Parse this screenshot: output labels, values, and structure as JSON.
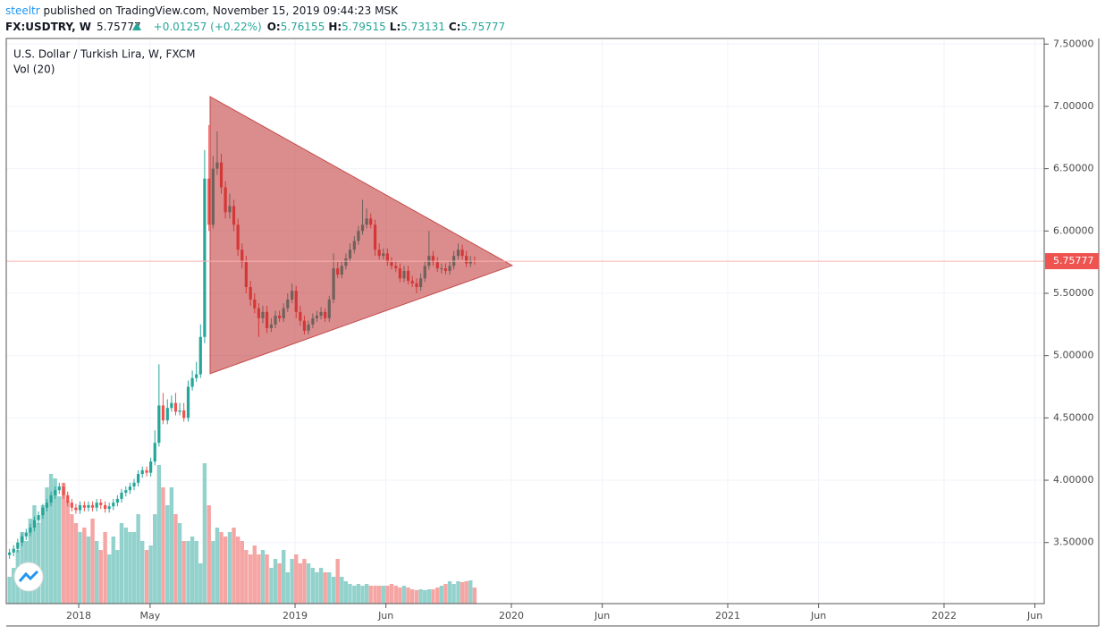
{
  "header": {
    "author": "steeltr",
    "published": " published on TradingView.com, November 15, 2019 09:44:23 MSK",
    "symbol": "FX:USDTRY, W",
    "change": "+0.01257 (+0.22%)",
    "ohlc_labels": [
      "O:",
      "H:",
      "L:",
      "C:"
    ]
  },
  "chart_data": {
    "type": "candlestick",
    "title": "U.S. Dollar / Turkish Lira, W, FXCM",
    "up_color": "#26a69a",
    "down_color": "#ef5350",
    "grid": true,
    "last_price": 5.75777,
    "xlim": [
      2017.665,
      2022.463
    ],
    "ylim": [
      3.01,
      7.545
    ],
    "xticks": [
      {
        "value": 2018,
        "label": "2018"
      },
      {
        "value": 2018.33,
        "label": "May"
      },
      {
        "value": 2019,
        "label": "2019"
      },
      {
        "value": 2019.42,
        "label": "Jun"
      },
      {
        "value": 2020,
        "label": "2020"
      },
      {
        "value": 2020.42,
        "label": "Jun"
      },
      {
        "value": 2021,
        "label": "2021"
      },
      {
        "value": 2021.42,
        "label": "Jun"
      },
      {
        "value": 2022,
        "label": "2022"
      },
      {
        "value": 2022.42,
        "label": "Jun"
      }
    ],
    "yticks": [
      {
        "value": 3.5,
        "label": "3.50000"
      },
      {
        "value": 4,
        "label": "4.00000"
      },
      {
        "value": 4.5,
        "label": "4.50000"
      },
      {
        "value": 5,
        "label": "5.00000"
      },
      {
        "value": 5.5,
        "label": "5.50000"
      },
      {
        "value": 6,
        "label": "6.00000"
      },
      {
        "value": 6.5,
        "label": "6.50000"
      },
      {
        "value": 7,
        "label": "7.00000"
      },
      {
        "value": 7.5,
        "label": "7.50000"
      }
    ],
    "x": [
      2017.68,
      2017.699,
      2017.718,
      2017.738,
      2017.757,
      2017.776,
      2017.795,
      2017.814,
      2017.834,
      2017.853,
      2017.872,
      2017.891,
      2017.91,
      2017.93,
      2017.949,
      2017.968,
      2017.987,
      2018.006,
      2018.026,
      2018.045,
      2018.064,
      2018.083,
      2018.102,
      2018.122,
      2018.141,
      2018.16,
      2018.179,
      2018.198,
      2018.218,
      2018.237,
      2018.256,
      2018.275,
      2018.294,
      2018.314,
      2018.333,
      2018.352,
      2018.371,
      2018.39,
      2018.41,
      2018.429,
      2018.448,
      2018.467,
      2018.486,
      2018.506,
      2018.525,
      2018.544,
      2018.563,
      2018.582,
      2018.602,
      2018.621,
      2018.64,
      2018.659,
      2018.678,
      2018.698,
      2018.717,
      2018.736,
      2018.755,
      2018.774,
      2018.794,
      2018.813,
      2018.832,
      2018.851,
      2018.87,
      2018.89,
      2018.909,
      2018.928,
      2018.947,
      2018.966,
      2018.986,
      2019.005,
      2019.024,
      2019.043,
      2019.062,
      2019.082,
      2019.101,
      2019.12,
      2019.139,
      2019.158,
      2019.178,
      2019.197,
      2019.216,
      2019.235,
      2019.254,
      2019.274,
      2019.293,
      2019.312,
      2019.331,
      2019.35,
      2019.37,
      2019.389,
      2019.408,
      2019.427,
      2019.446,
      2019.466,
      2019.485,
      2019.504,
      2019.523,
      2019.542,
      2019.562,
      2019.581,
      2019.6,
      2019.619,
      2019.638,
      2019.658,
      2019.677,
      2019.696,
      2019.715,
      2019.734,
      2019.754,
      2019.773,
      2019.792,
      2019.811,
      2019.83
    ],
    "open": [
      3.4,
      3.42,
      3.45,
      3.5,
      3.55,
      3.58,
      3.62,
      3.68,
      3.72,
      3.78,
      3.82,
      3.88,
      3.92,
      3.95,
      3.88,
      3.82,
      3.78,
      3.76,
      3.8,
      3.78,
      3.8,
      3.78,
      3.82,
      3.8,
      3.77,
      3.79,
      3.82,
      3.85,
      3.9,
      3.92,
      3.95,
      3.98,
      4.05,
      4.08,
      4.06,
      4.15,
      4.3,
      4.6,
      4.48,
      4.58,
      4.62,
      4.55,
      4.56,
      4.5,
      4.75,
      4.82,
      4.85,
      5.15,
      6.42,
      6.05,
      6.5,
      6.55,
      6.35,
      6.15,
      6.2,
      6.05,
      5.85,
      5.75,
      5.55,
      5.45,
      5.38,
      5.3,
      5.35,
      5.22,
      5.25,
      5.32,
      5.3,
      5.38,
      5.45,
      5.52,
      5.35,
      5.28,
      5.2,
      5.25,
      5.3,
      5.32,
      5.35,
      5.3,
      5.45,
      5.7,
      5.65,
      5.72,
      5.78,
      5.85,
      5.92,
      6.0,
      6.05,
      6.1,
      6.05,
      5.85,
      5.8,
      5.82,
      5.75,
      5.72,
      5.7,
      5.62,
      5.68,
      5.6,
      5.58,
      5.55,
      5.62,
      5.72,
      5.8,
      5.75,
      5.7,
      5.7,
      5.68,
      5.72,
      5.8,
      5.85,
      5.8,
      5.74,
      5.76155
    ],
    "high": [
      3.45,
      3.48,
      3.53,
      3.58,
      3.61,
      3.65,
      3.71,
      3.75,
      3.81,
      3.85,
      3.91,
      3.95,
      3.98,
      3.98,
      3.91,
      3.85,
      3.81,
      3.83,
      3.83,
      3.83,
      3.83,
      3.85,
      3.85,
      3.83,
      3.82,
      3.85,
      3.88,
      3.93,
      3.95,
      3.98,
      4.01,
      4.08,
      4.11,
      4.11,
      4.18,
      4.4,
      4.93,
      4.7,
      4.65,
      4.68,
      4.7,
      4.62,
      4.62,
      4.8,
      4.88,
      4.95,
      5.25,
      6.65,
      6.85,
      6.6,
      6.8,
      6.62,
      6.4,
      6.3,
      6.25,
      6.1,
      5.9,
      5.8,
      5.6,
      5.5,
      5.42,
      5.4,
      5.4,
      5.3,
      5.36,
      5.36,
      5.42,
      5.5,
      5.58,
      5.56,
      5.4,
      5.32,
      5.28,
      5.34,
      5.36,
      5.39,
      5.38,
      5.48,
      5.82,
      5.75,
      5.76,
      5.82,
      5.9,
      5.96,
      6.04,
      6.25,
      6.18,
      6.14,
      6.09,
      5.9,
      5.86,
      5.86,
      5.79,
      5.76,
      5.74,
      5.72,
      5.72,
      5.64,
      5.62,
      5.66,
      5.76,
      6.0,
      5.84,
      5.79,
      5.74,
      5.74,
      5.76,
      5.84,
      5.9,
      5.89,
      5.84,
      5.8,
      5.79515
    ],
    "low": [
      3.37,
      3.39,
      3.42,
      3.47,
      3.52,
      3.55,
      3.59,
      3.65,
      3.69,
      3.75,
      3.79,
      3.85,
      3.89,
      3.85,
      3.79,
      3.75,
      3.73,
      3.73,
      3.75,
      3.75,
      3.75,
      3.75,
      3.77,
      3.74,
      3.74,
      3.76,
      3.79,
      3.82,
      3.87,
      3.89,
      3.92,
      3.95,
      4.02,
      4.03,
      4.03,
      4.12,
      4.27,
      4.45,
      4.45,
      4.55,
      4.52,
      4.52,
      4.47,
      4.47,
      4.72,
      4.79,
      4.82,
      5.1,
      6.0,
      6.02,
      6.45,
      6.3,
      6.1,
      6.1,
      6.0,
      5.8,
      5.7,
      5.5,
      5.4,
      5.34,
      5.15,
      5.26,
      5.18,
      5.19,
      5.22,
      5.27,
      5.27,
      5.35,
      5.42,
      5.3,
      5.24,
      5.17,
      5.17,
      5.22,
      5.27,
      5.29,
      5.27,
      5.27,
      5.42,
      5.62,
      5.62,
      5.69,
      5.75,
      5.82,
      5.89,
      5.97,
      6.02,
      6.02,
      5.8,
      5.77,
      5.77,
      5.72,
      5.69,
      5.67,
      5.59,
      5.59,
      5.57,
      5.55,
      5.5,
      5.52,
      5.59,
      5.69,
      5.72,
      5.67,
      5.66,
      5.65,
      5.65,
      5.69,
      5.77,
      5.77,
      5.71,
      5.71,
      5.73131
    ],
    "close": [
      3.42,
      3.45,
      3.5,
      3.55,
      3.58,
      3.62,
      3.68,
      3.72,
      3.78,
      3.82,
      3.88,
      3.92,
      3.95,
      3.88,
      3.82,
      3.78,
      3.76,
      3.8,
      3.78,
      3.8,
      3.78,
      3.82,
      3.8,
      3.77,
      3.79,
      3.82,
      3.85,
      3.9,
      3.92,
      3.95,
      3.98,
      4.05,
      4.08,
      4.06,
      4.15,
      4.3,
      4.6,
      4.48,
      4.58,
      4.62,
      4.55,
      4.56,
      4.5,
      4.75,
      4.82,
      4.85,
      5.15,
      6.42,
      6.05,
      6.5,
      6.55,
      6.35,
      6.15,
      6.2,
      6.05,
      5.85,
      5.75,
      5.55,
      5.45,
      5.38,
      5.3,
      5.35,
      5.22,
      5.25,
      5.32,
      5.3,
      5.38,
      5.45,
      5.52,
      5.35,
      5.28,
      5.2,
      5.25,
      5.3,
      5.32,
      5.35,
      5.3,
      5.45,
      5.7,
      5.65,
      5.72,
      5.78,
      5.85,
      5.92,
      6.0,
      6.05,
      6.1,
      6.05,
      5.85,
      5.8,
      5.82,
      5.75,
      5.72,
      5.7,
      5.62,
      5.68,
      5.6,
      5.58,
      5.55,
      5.62,
      5.72,
      5.8,
      5.75,
      5.7,
      5.7,
      5.68,
      5.72,
      5.8,
      5.85,
      5.8,
      5.74,
      5.76155,
      5.75777
    ],
    "volume": {
      "name": "Vol (20)",
      "up_color": "#93d2cc",
      "down_color": "#f5a5a3",
      "values": [
        30,
        40,
        60,
        80,
        70,
        95,
        110,
        90,
        110,
        130,
        145,
        140,
        120,
        135,
        115,
        100,
        90,
        80,
        85,
        75,
        95,
        70,
        60,
        80,
        55,
        75,
        60,
        90,
        85,
        80,
        80,
        100,
        70,
        60,
        65,
        100,
        155,
        130,
        110,
        130,
        100,
        90,
        70,
        70,
        75,
        70,
        45,
        157,
        110,
        70,
        85,
        80,
        75,
        80,
        85,
        75,
        70,
        60,
        55,
        65,
        55,
        60,
        55,
        40,
        50,
        45,
        60,
        35,
        50,
        55,
        45,
        50,
        45,
        40,
        35,
        40,
        35,
        35,
        30,
        50,
        30,
        25,
        22,
        20,
        22,
        20,
        22,
        20,
        20,
        20,
        20,
        20,
        22,
        20,
        18,
        20,
        18,
        16,
        15,
        16,
        15,
        16,
        16,
        18,
        20,
        22,
        25,
        22,
        25,
        24,
        25,
        26,
        18
      ]
    },
    "triangle": {
      "color": "#b71c1c",
      "x": [
        2018.607,
        2018.607,
        2020.004
      ],
      "y": [
        7.079,
        4.855,
        5.723
      ]
    }
  }
}
